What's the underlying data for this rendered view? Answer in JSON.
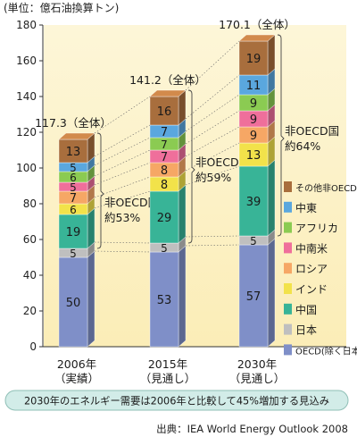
{
  "header": {
    "unit_label": "(単位：億石油換算トン)"
  },
  "chart_data": {
    "type": "bar",
    "stacked": true,
    "categories": [
      "2006年\n（実績）",
      "2015年\n（見通し）",
      "2030年\n（見通し）"
    ],
    "category_lines": [
      [
        "2006年",
        "（実績）"
      ],
      [
        "2015年",
        "（見通し）"
      ],
      [
        "2030年",
        "（見通し）"
      ]
    ],
    "totals": [
      117.3,
      141.2,
      170.1
    ],
    "total_labels": [
      "117.3（全体）",
      "141.2（全体）",
      "170.1（全体）"
    ],
    "ylim": [
      0,
      180
    ],
    "yticks": [
      0,
      20,
      40,
      60,
      80,
      100,
      120,
      140,
      160,
      180
    ],
    "grid": false,
    "series": [
      {
        "name": "OECD(除く日本)",
        "color": "#7f8fc8",
        "values": [
          50,
          53,
          57
        ]
      },
      {
        "name": "日本",
        "color": "#bfbfbf",
        "values": [
          5,
          5,
          5
        ]
      },
      {
        "name": "中国",
        "color": "#38b497",
        "values": [
          19,
          29,
          39
        ]
      },
      {
        "name": "インド",
        "color": "#f2e24a",
        "values": [
          6,
          8,
          13
        ]
      },
      {
        "name": "ロシア",
        "color": "#f6a765",
        "values": [
          7,
          8,
          9
        ]
      },
      {
        "name": "中南米",
        "color": "#ef6f9b",
        "values": [
          5,
          7,
          9
        ]
      },
      {
        "name": "アフリカ",
        "color": "#8bcb52",
        "values": [
          6,
          7,
          9
        ]
      },
      {
        "name": "中東",
        "color": "#5aa7de",
        "values": [
          5,
          7,
          11
        ]
      },
      {
        "name": "その他非OECD",
        "color": "#a86e3d",
        "values": [
          13,
          16,
          19
        ]
      }
    ],
    "annotations": [
      {
        "text": "非OECD国\n約53%",
        "lines": [
          "非OECD国",
          "約53%"
        ]
      },
      {
        "text": "非OECD国\n約59%",
        "lines": [
          "非OECD国",
          "約59%"
        ]
      },
      {
        "text": "非OECD国\n約64%",
        "lines": [
          "非OECD国",
          "約64%"
        ]
      }
    ],
    "legend_position": "right"
  },
  "banner": {
    "text": "2030年のエネルギー需要は2006年と比較して45%増加する見込み"
  },
  "source": {
    "text": "出典：IEA World Energy Outlook 2008"
  }
}
